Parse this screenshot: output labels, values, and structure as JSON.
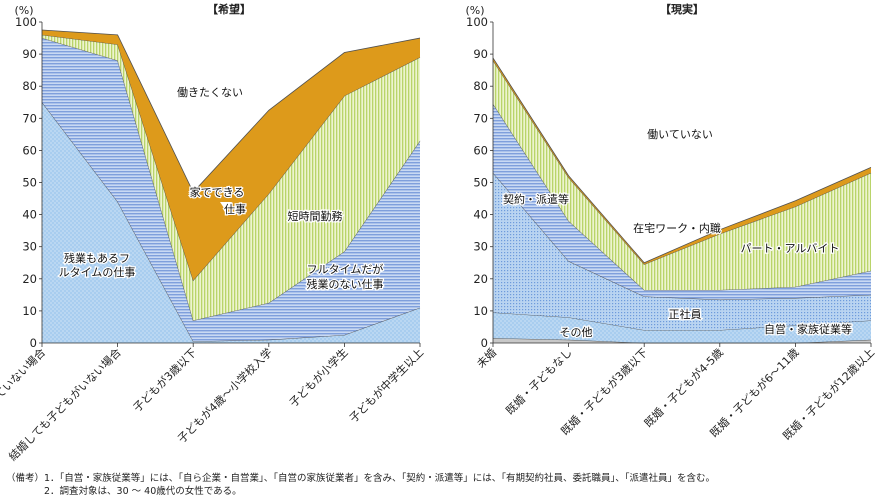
{
  "chart_data": [
    {
      "type": "area",
      "title": "【希望】",
      "ylabel": "(%)",
      "ylim": [
        0,
        100
      ],
      "yticks": [
        0,
        10,
        20,
        30,
        40,
        50,
        60,
        70,
        80,
        90,
        100
      ],
      "categories": [
        "結婚していない場合",
        "結婚しても子どもがいない場合",
        "子どもが3歳以下",
        "子どもが4歳〜小学校入学",
        "子どもが小学生",
        "子どもが中学生以上"
      ],
      "stacked": true,
      "series": [
        {
          "name": "残業もあるフルタイムの仕事",
          "values": [
            75,
            44,
            0.5,
            1,
            2.5,
            11
          ],
          "color": "#a6ccef",
          "pattern": "dots"
        },
        {
          "name": "フルタイムだが残業のない仕事",
          "values": [
            20,
            44,
            6.5,
            11.5,
            26,
            52
          ],
          "color": "#8fb1e6",
          "pattern": "hlines"
        },
        {
          "name": "短時間勤務",
          "values": [
            1,
            5,
            12.5,
            34,
            48.5,
            26
          ],
          "color": "#d6e89f",
          "pattern": "vlines"
        },
        {
          "name": "家でできる仕事",
          "values": [
            1.5,
            3,
            27.5,
            26,
            13.5,
            6
          ],
          "color": "#dd9a1b",
          "pattern": "solid"
        },
        {
          "name": "働きたくない",
          "values": [
            2.5,
            4,
            53,
            27.5,
            9.5,
            5
          ],
          "color": "#ffffff",
          "pattern": "none"
        }
      ]
    },
    {
      "type": "area",
      "title": "【現実】",
      "ylabel": "(%)",
      "ylim": [
        0,
        100
      ],
      "yticks": [
        0,
        10,
        20,
        30,
        40,
        50,
        60,
        70,
        80,
        90,
        100
      ],
      "categories": [
        "未婚",
        "既婚・子どもなし",
        "既婚・子どもが3歳以下",
        "既婚・子どもが4-5歳",
        "既婚・子どもが6〜11歳",
        "既婚・子どもが12歳以上"
      ],
      "stacked": true,
      "series": [
        {
          "name": "その他",
          "values": [
            1.5,
            1,
            0,
            0,
            0,
            1
          ],
          "color": "#c8c8c8",
          "pattern": "solid"
        },
        {
          "name": "自営・家族従業等",
          "values": [
            8,
            7,
            4,
            4,
            5.5,
            6
          ],
          "color": "#a6ccef",
          "pattern": "dots"
        },
        {
          "name": "正社員",
          "values": [
            43.5,
            17.5,
            10.5,
            9.5,
            8.5,
            8
          ],
          "color": "#a6ccef",
          "pattern": "grid"
        },
        {
          "name": "契約・派遣等",
          "values": [
            21.5,
            12.5,
            2,
            3,
            3.5,
            7.5
          ],
          "color": "#8fb1e6",
          "pattern": "hlines"
        },
        {
          "name": "パート・アルバイト",
          "values": [
            13.5,
            13.5,
            8,
            17.5,
            25,
            30.5
          ],
          "color": "#d6e89f",
          "pattern": "vlines"
        },
        {
          "name": "在宅ワーク・内職",
          "values": [
            0.8,
            0.6,
            0.5,
            1.3,
            1.8,
            1.7
          ],
          "color": "#dd9a1b",
          "pattern": "solid"
        },
        {
          "name": "働いていない",
          "values": [
            11.2,
            47.9,
            75,
            64.7,
            55.7,
            45.3
          ],
          "color": "#ffffff",
          "pattern": "none"
        }
      ]
    }
  ],
  "notes": [
    "（備考）1．「自営・家族従業等」には、「自ら企業・自営業」、「自営の家族従業者」を含み、「契約・派遣等」には、「有期契約社員、委託職員」、「派遣社員」を含む。",
    "2．調査対象は、30 ～ 40歳代の女性である。"
  ],
  "annotations": {
    "left": [
      {
        "text": "働きたくない"
      },
      {
        "text": "家でできる"
      },
      {
        "text": "仕事"
      },
      {
        "text": "短時間勤務"
      },
      {
        "text": "残業もあるフ"
      },
      {
        "text": "ルタイムの仕事"
      },
      {
        "text": "フルタイムだが"
      },
      {
        "text": "残業のない仕事"
      }
    ],
    "right": [
      {
        "text": "働いていない"
      },
      {
        "text": "契約・派遣等"
      },
      {
        "text": "在宅ワーク・内職"
      },
      {
        "text": "パート・アルバイト"
      },
      {
        "text": "正社員"
      },
      {
        "text": "その他"
      },
      {
        "text": "自営・家族従業等"
      }
    ]
  }
}
